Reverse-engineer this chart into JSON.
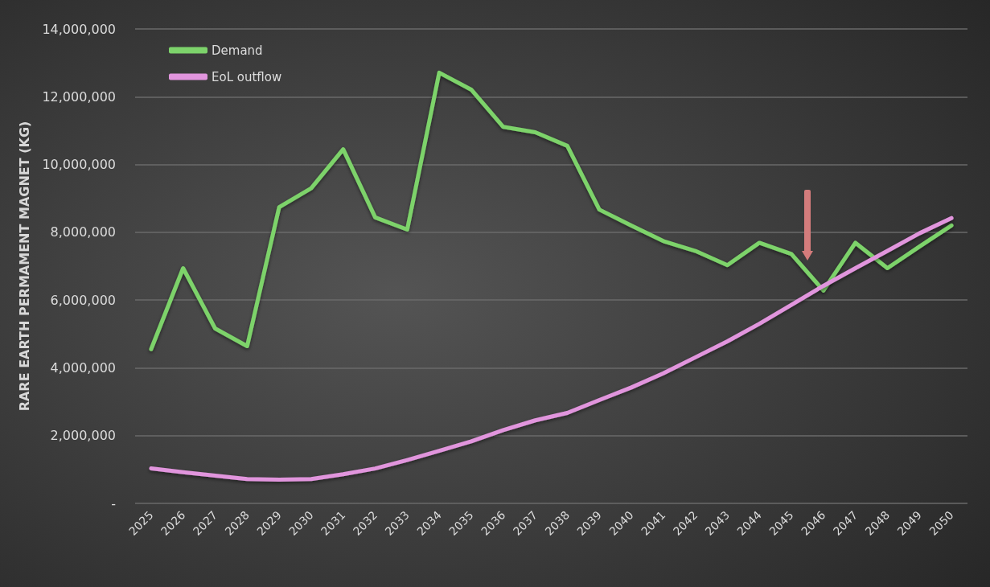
{
  "chart_data": {
    "type": "line",
    "ylabel": "RARE EARTH PERMAMENT MAGNET (KG)",
    "categories": [
      "2025",
      "2026",
      "2027",
      "2028",
      "2029",
      "2030",
      "2031",
      "2032",
      "2033",
      "2034",
      "2035",
      "2036",
      "2037",
      "2038",
      "2039",
      "2040",
      "2041",
      "2042",
      "2043",
      "2044",
      "2045",
      "2046",
      "2047",
      "2048",
      "2049",
      "2050"
    ],
    "series": [
      {
        "name": "Demand",
        "color": "#7dd36b",
        "values": [
          4550000,
          6940000,
          5160000,
          4640000,
          8740000,
          9300000,
          10450000,
          8440000,
          8080000,
          12710000,
          12210000,
          11110000,
          10950000,
          10550000,
          8670000,
          8200000,
          7740000,
          7450000,
          7030000,
          7690000,
          7360000,
          6280000,
          7690000,
          6940000,
          7580000,
          8200000
        ]
      },
      {
        "name": "EoL outflow",
        "color": "#e195dd",
        "values": [
          1030000,
          920000,
          820000,
          720000,
          700000,
          720000,
          860000,
          1030000,
          1280000,
          1550000,
          1830000,
          2160000,
          2450000,
          2670000,
          3050000,
          3420000,
          3840000,
          4310000,
          4780000,
          5300000,
          5860000,
          6420000,
          6940000,
          7450000,
          7970000,
          8420000
        ]
      }
    ],
    "ylim": [
      0,
      14000000
    ],
    "yticks": [
      {
        "value": 0,
        "label": "-"
      },
      {
        "value": 2000000,
        "label": "2,000,000"
      },
      {
        "value": 4000000,
        "label": "4,000,000"
      },
      {
        "value": 6000000,
        "label": "6,000,000"
      },
      {
        "value": 8000000,
        "label": "8,000,000"
      },
      {
        "value": 10000000,
        "label": "10,000,000"
      },
      {
        "value": 12000000,
        "label": "12,000,000"
      },
      {
        "value": 14000000,
        "label": "14,000,000"
      }
    ],
    "grid": "y",
    "legend": "top left",
    "marker": "none",
    "line_style": "solid"
  }
}
